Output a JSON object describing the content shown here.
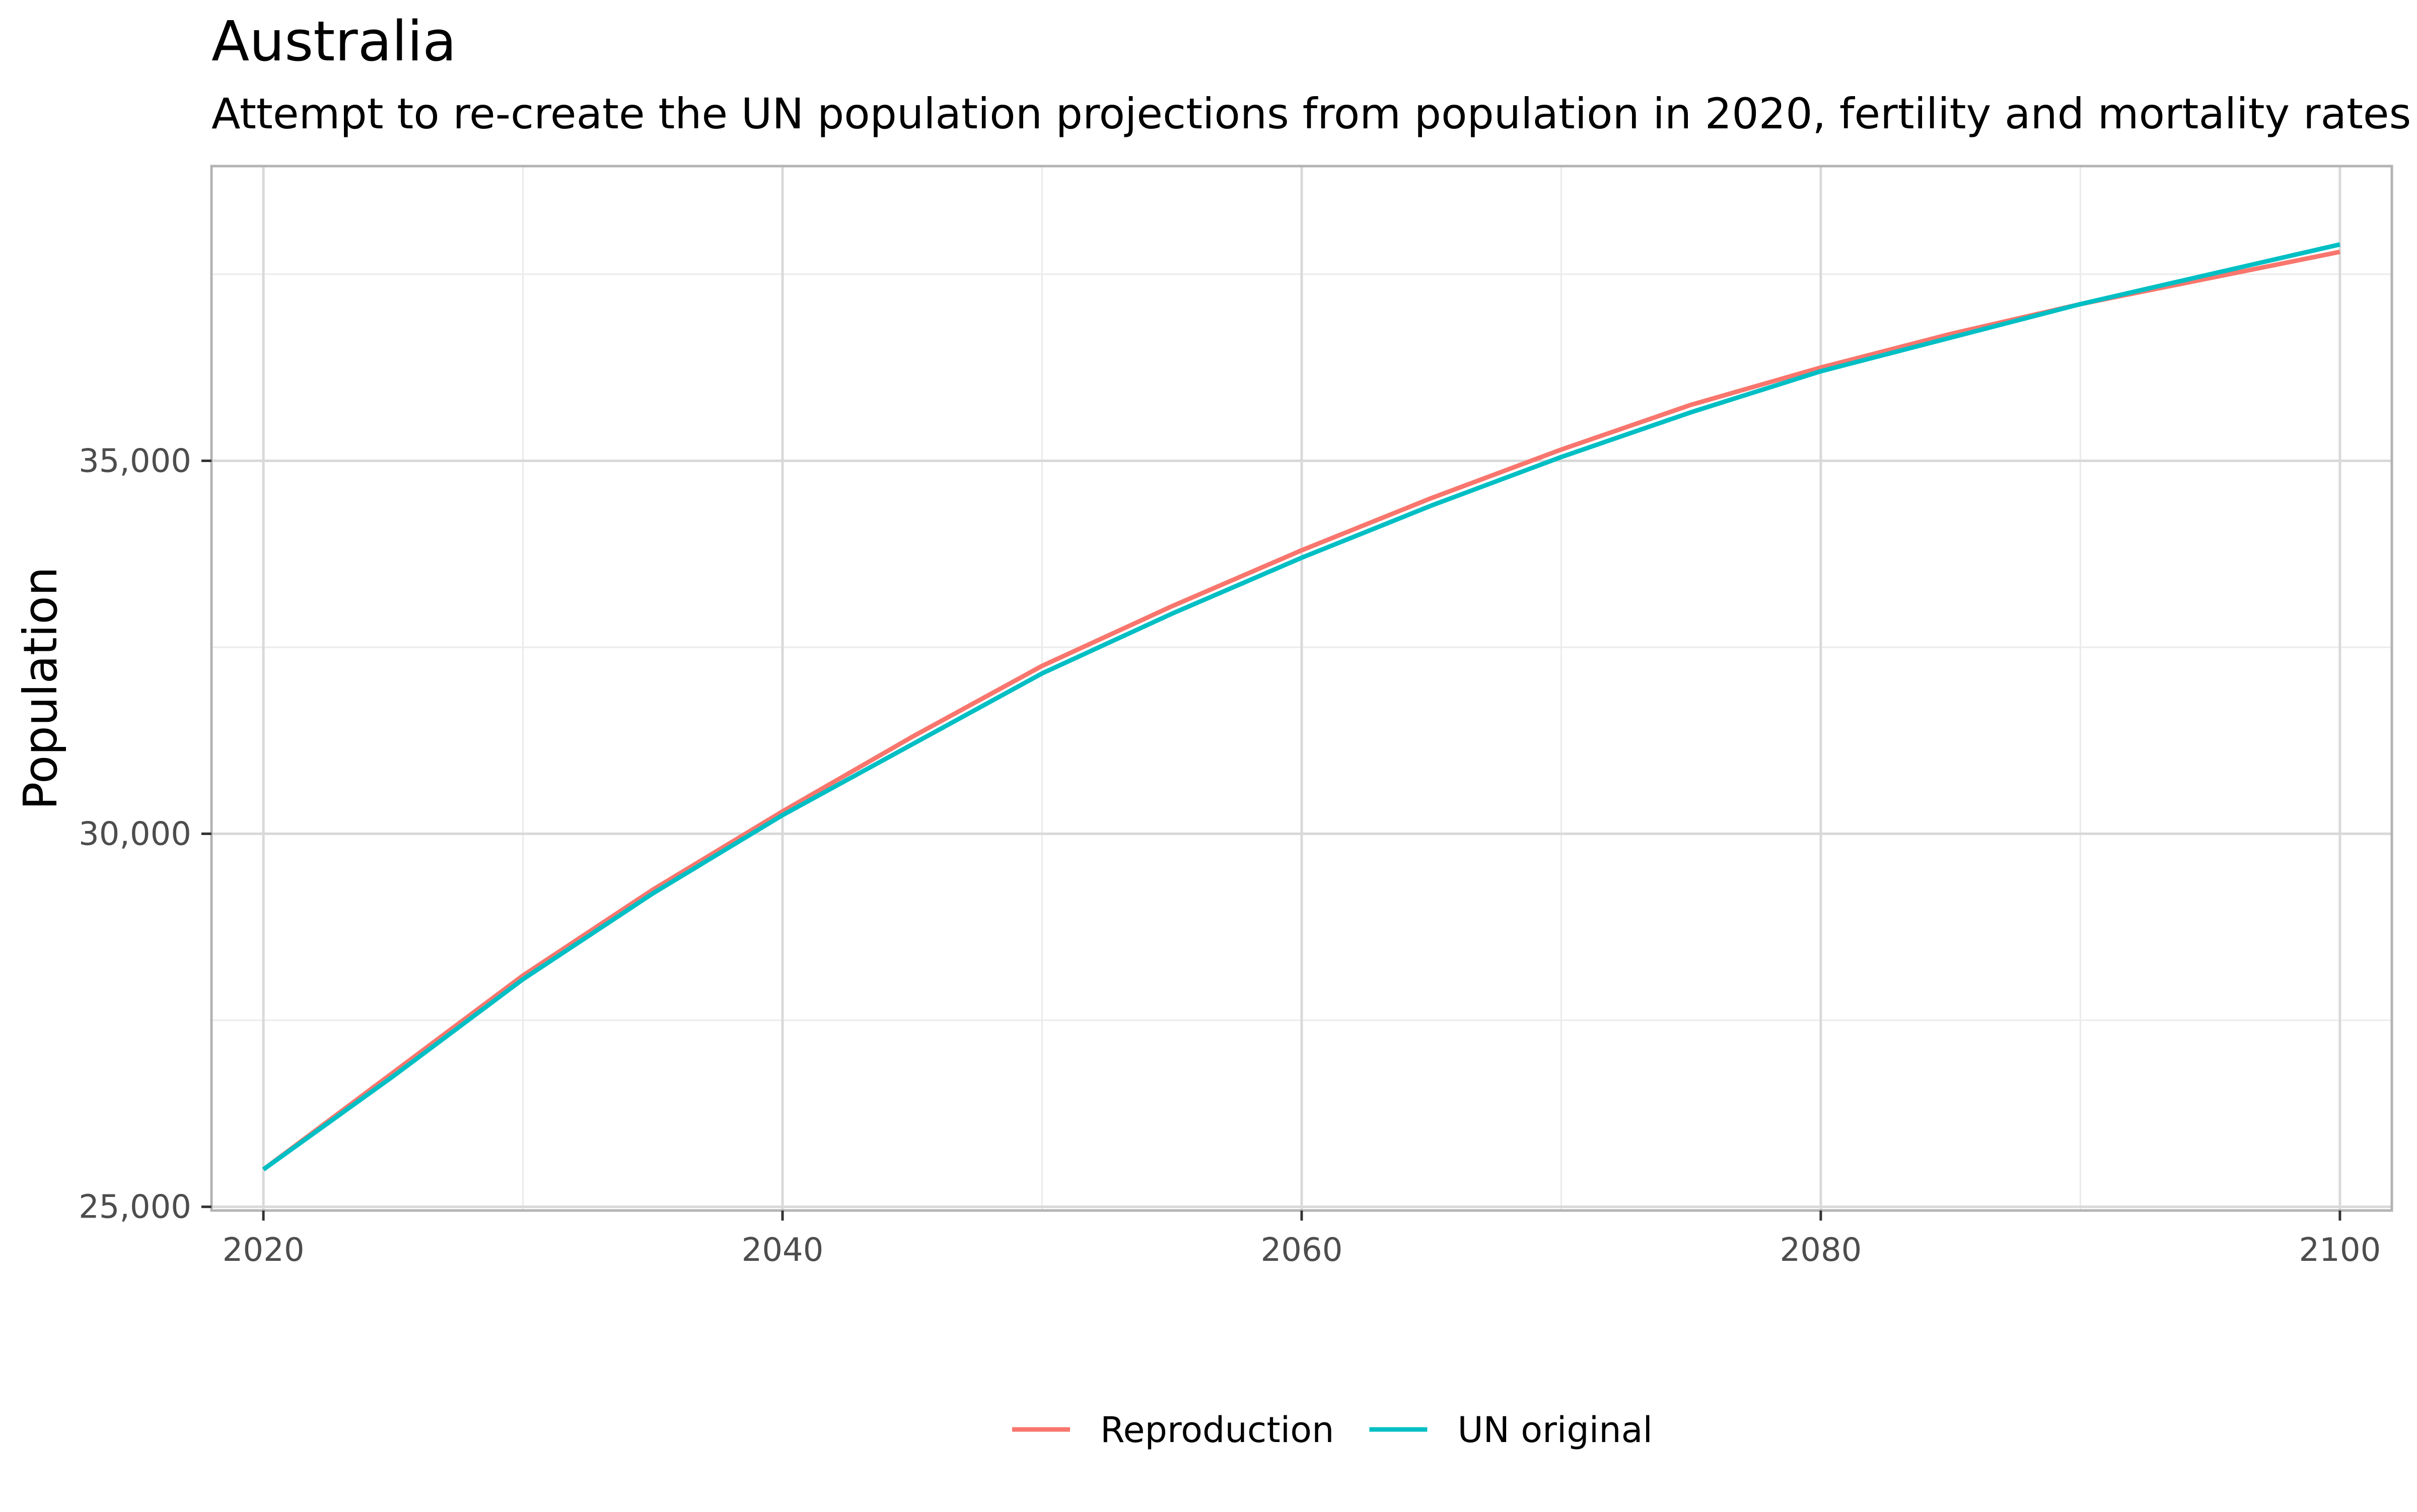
{
  "chart_data": {
    "type": "line",
    "title": "Australia",
    "subtitle": "Attempt to re-create the UN population projections from population in 2020, fertility and mortality rates",
    "xlabel": "",
    "ylabel": "Population",
    "xlim": [
      2018,
      2102
    ],
    "ylim": [
      24950,
      38950
    ],
    "x_ticks": [
      2020,
      2040,
      2060,
      2080,
      2100
    ],
    "x_tick_labels": [
      "2020",
      "2040",
      "2060",
      "2080",
      "2100"
    ],
    "y_ticks": [
      25000,
      30000,
      35000
    ],
    "y_tick_labels": [
      "25,000",
      "30,000",
      "35,000"
    ],
    "y_minor_ticks": [
      27500,
      32500,
      37500
    ],
    "grid": true,
    "legend_position": "bottom",
    "series": [
      {
        "name": "Reproduction",
        "color": "#F8766D",
        "x": [
          2020,
          2025,
          2030,
          2035,
          2040,
          2045,
          2050,
          2055,
          2060,
          2065,
          2070,
          2075,
          2080,
          2085,
          2090,
          2095,
          2100
        ],
        "values": [
          25500,
          26800,
          28100,
          29250,
          30300,
          31300,
          32250,
          33050,
          33800,
          34500,
          35150,
          35750,
          36250,
          36700,
          37100,
          37450,
          37800
        ]
      },
      {
        "name": "UN original",
        "color": "#00BFC4",
        "x": [
          2020,
          2025,
          2030,
          2035,
          2040,
          2045,
          2050,
          2055,
          2060,
          2065,
          2070,
          2075,
          2080,
          2085,
          2090,
          2095,
          2100
        ],
        "values": [
          25500,
          26750,
          28050,
          29200,
          30250,
          31200,
          32150,
          32950,
          33700,
          34400,
          35050,
          35650,
          36200,
          36650,
          37100,
          37500,
          37900
        ]
      }
    ]
  }
}
